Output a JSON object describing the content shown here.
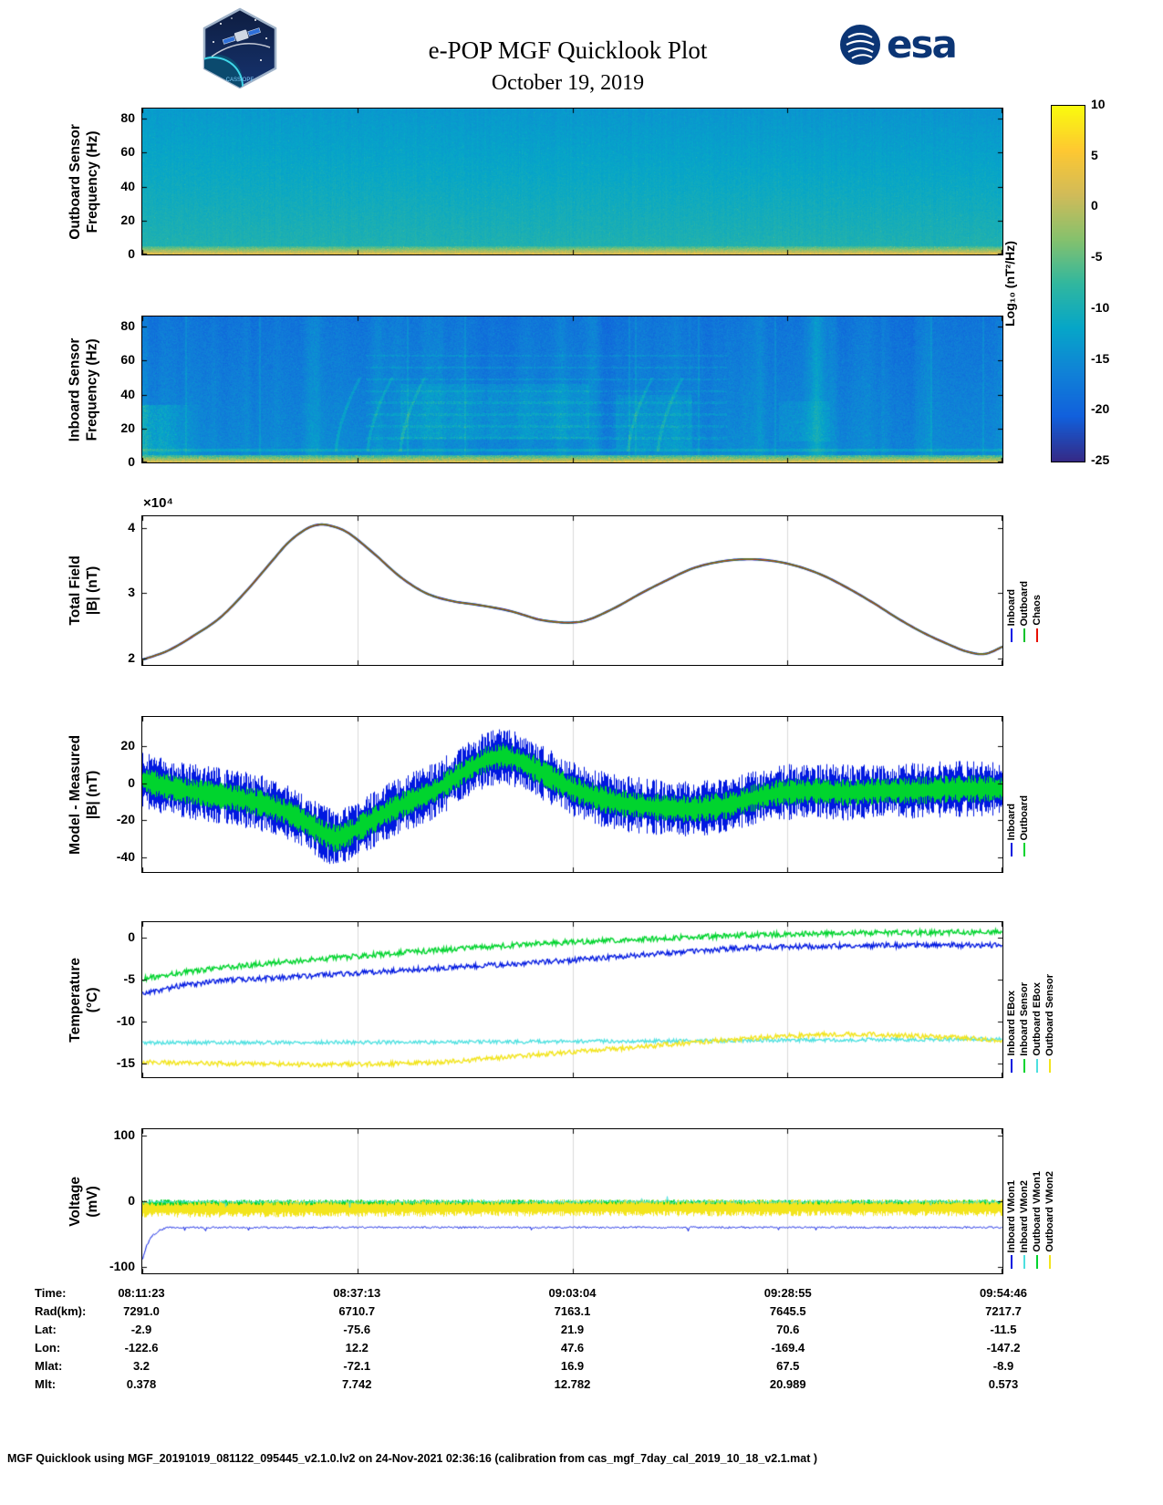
{
  "header": {
    "title": "e-POP MGF Quicklook Plot",
    "date": "October 19, 2019",
    "esa_text": "esa",
    "epop_caption": "CASSIOPE"
  },
  "colorbar": {
    "label": "Log₁₀ (nT²/Hz)",
    "ticks": [
      10,
      5,
      0,
      -5,
      -10,
      -15,
      -20,
      -25
    ],
    "vmin": -25,
    "vmax": 10
  },
  "time_ticks": [
    "08:11:23",
    "08:37:13",
    "09:03:04",
    "09:28:55",
    "09:54:46"
  ],
  "chart_data": [
    {
      "id": "outboard_spectrogram",
      "type": "heatmap",
      "seed": 11,
      "ylabel": "Outboard Sensor\nFrequency (Hz)",
      "yticks": [
        0,
        20,
        40,
        60,
        80
      ],
      "fmax": 86,
      "vmin": -25,
      "vmax": 10,
      "bg_bottom": -9.0,
      "bg_top": -13.2,
      "noise": 1.25,
      "band_fmax": 4.5,
      "band_level": 2.6,
      "band_base": -7,
      "value_units": "Log10 (nT^2/Hz)"
    },
    {
      "id": "inboard_spectrogram",
      "type": "heatmap",
      "seed": 22,
      "ylabel": "Inboard Sensor\nFrequency (Hz)",
      "yticks": [
        0,
        20,
        40,
        60,
        80
      ],
      "fmax": 86,
      "vmin": -25,
      "vmax": 10,
      "bg_bottom": -15.3,
      "bg_top": -18.0,
      "noise": 2.1,
      "band_fmax": 4.0,
      "band_level": 2.2,
      "band_base": -8,
      "value_units": "Log10 (nT^2/Hz)"
    },
    {
      "id": "total_field",
      "type": "line",
      "seed": 3,
      "ylabel": "Total Field\n|B| (nT)",
      "scale_label": "×10⁴",
      "ylim": [
        1.9,
        4.18
      ],
      "yticks": [
        4,
        3,
        2
      ],
      "x": [
        0,
        0.03,
        0.06,
        0.09,
        0.12,
        0.15,
        0.17,
        0.19,
        0.205,
        0.22,
        0.24,
        0.27,
        0.3,
        0.33,
        0.36,
        0.39,
        0.42,
        0.44,
        0.46,
        0.48,
        0.5,
        0.52,
        0.55,
        0.58,
        0.61,
        0.64,
        0.67,
        0.7,
        0.73,
        0.76,
        0.79,
        0.82,
        0.85,
        0.88,
        0.91,
        0.94,
        0.96,
        0.98,
        1.0
      ],
      "y": [
        1.98,
        2.12,
        2.35,
        2.62,
        3.02,
        3.48,
        3.78,
        3.98,
        4.05,
        4.03,
        3.92,
        3.6,
        3.25,
        3.0,
        2.88,
        2.82,
        2.75,
        2.68,
        2.6,
        2.56,
        2.55,
        2.6,
        2.78,
        3.0,
        3.2,
        3.38,
        3.48,
        3.52,
        3.5,
        3.42,
        3.28,
        3.08,
        2.85,
        2.6,
        2.38,
        2.2,
        2.1,
        2.07,
        2.18
      ],
      "series": [
        {
          "name": "Inboard",
          "mode": "smooth",
          "color": "#0015e6",
          "width": 2.4
        },
        {
          "name": "Outboard",
          "mode": "smooth",
          "color": "#00c22a",
          "width": 1.7
        },
        {
          "name": "Chaos",
          "mode": "smooth",
          "color": "#ad4512",
          "width": 1.3
        }
      ],
      "legend": [
        {
          "label": "Inboard",
          "color": "#0015e6"
        },
        {
          "label": "Outboard",
          "color": "#00c22a"
        },
        {
          "label": "Chaos",
          "color": "#e80f00"
        }
      ],
      "legend_mb": 26
    },
    {
      "id": "model_minus_measured",
      "type": "line",
      "seed": 4,
      "ylabel": "Model - Measured\n|B| (nT)",
      "ylim": [
        -48,
        36
      ],
      "yticks": [
        20,
        0,
        -20,
        -40
      ],
      "x": [
        0,
        0.02,
        0.05,
        0.08,
        0.11,
        0.14,
        0.17,
        0.19,
        0.21,
        0.225,
        0.24,
        0.26,
        0.29,
        0.32,
        0.34,
        0.36,
        0.38,
        0.4,
        0.42,
        0.44,
        0.46,
        0.48,
        0.5,
        0.53,
        0.56,
        0.6,
        0.64,
        0.68,
        0.71,
        0.74,
        0.78,
        0.82,
        0.86,
        0.9,
        0.94,
        0.97,
        1.0
      ],
      "y": [
        2,
        -1,
        -4,
        -6,
        -8,
        -11,
        -16,
        -21,
        -27,
        -30,
        -27,
        -22,
        -14,
        -8,
        -4,
        2,
        8,
        13,
        15,
        12,
        7,
        2,
        -3,
        -8,
        -11,
        -13,
        -14,
        -12,
        -8,
        -5,
        -4,
        -5,
        -4,
        -4,
        -3,
        -3,
        -3
      ],
      "series": [
        {
          "name": "Inboard",
          "mode": "band",
          "color": "#0018e0",
          "amp": 10.5
        },
        {
          "name": "Outboard",
          "mode": "band",
          "color": "#00d42e",
          "amp": 5.2
        }
      ],
      "legend": [
        {
          "label": "Inboard",
          "color": "#0018e0"
        },
        {
          "label": "Outboard",
          "color": "#00d42e"
        }
      ],
      "legend_mb": 18
    },
    {
      "id": "temperature",
      "type": "line",
      "seed": 5,
      "ylabel": "Temperature\n(°C)",
      "ylim": [
        -16.6,
        1.84
      ],
      "yticks": [
        0,
        -5,
        -10,
        -15
      ],
      "series": [
        {
          "name": "Outboard EBox",
          "mode": "noisy",
          "color": "#4ce0e0",
          "amp": 0.22,
          "width": 1.3,
          "x": [
            0,
            0.25,
            0.5,
            0.75,
            1
          ],
          "y": [
            -12.5,
            -12.45,
            -12.35,
            -12.2,
            -12.05
          ]
        },
        {
          "name": "Outboard Sensor",
          "mode": "noisy",
          "color": "#f2e41c",
          "amp": 0.28,
          "width": 1.4,
          "x": [
            0,
            0.1,
            0.2,
            0.3,
            0.35,
            0.4,
            0.5,
            0.6,
            0.7,
            0.75,
            0.8,
            0.85,
            0.9,
            0.95,
            1
          ],
          "y": [
            -14.8,
            -15.0,
            -15.1,
            -15.0,
            -14.8,
            -14.4,
            -13.6,
            -12.8,
            -12.0,
            -11.7,
            -11.5,
            -11.5,
            -11.7,
            -11.9,
            -12.2
          ]
        },
        {
          "name": "Inboard EBox",
          "mode": "noisy",
          "color": "#0018e0",
          "amp": 0.32,
          "width": 1.3,
          "x": [
            0,
            0.05,
            0.1,
            0.15,
            0.2,
            0.3,
            0.4,
            0.5,
            0.6,
            0.7,
            0.8,
            0.9,
            1
          ],
          "y": [
            -6.6,
            -5.6,
            -5.1,
            -4.8,
            -4.5,
            -3.9,
            -3.3,
            -2.7,
            -1.9,
            -1.2,
            -1.0,
            -0.9,
            -0.9
          ]
        },
        {
          "name": "Inboard Sensor",
          "mode": "noisy",
          "color": "#00d42e",
          "amp": 0.32,
          "width": 1.4,
          "x": [
            0,
            0.05,
            0.1,
            0.15,
            0.2,
            0.3,
            0.4,
            0.5,
            0.6,
            0.7,
            0.8,
            0.9,
            1
          ],
          "y": [
            -4.9,
            -4.1,
            -3.5,
            -3.0,
            -2.6,
            -1.8,
            -1.1,
            -0.5,
            -0.1,
            0.3,
            0.5,
            0.6,
            0.7
          ]
        }
      ],
      "legend": [
        {
          "label": "Inboard EBox",
          "color": "#0018e0"
        },
        {
          "label": "Inboard Sensor",
          "color": "#00d42e"
        },
        {
          "label": "Outboard EBox",
          "color": "#4ce0e0"
        },
        {
          "label": "Outboard Sensor",
          "color": "#f2e41c"
        }
      ],
      "legend_mb": 6
    },
    {
      "id": "voltage",
      "type": "line",
      "seed": 6,
      "ylabel": "Voltage\n(mV)",
      "ylim": [
        -110,
        110
      ],
      "yticks": [
        100,
        0,
        -100
      ],
      "series": [
        {
          "name": "Outboard VMon1",
          "mode": "band",
          "color": "#00d42e",
          "amp": 4.5,
          "x": [
            0,
            1
          ],
          "y": [
            -4,
            -4
          ]
        },
        {
          "name": "Outboard VMon2",
          "mode": "band",
          "color": "#f2e41c",
          "amp": 9,
          "x": [
            0,
            0.5,
            1
          ],
          "y": [
            -12,
            -10,
            -10
          ]
        },
        {
          "name": "Inboard VMon2",
          "mode": "noisy",
          "color": "#4ce0e0",
          "amp": 2.2,
          "width": 1,
          "spike_rate": 0.006,
          "spike_depth": 7,
          "spike_sign": 0,
          "x": [
            0,
            1
          ],
          "y": [
            -1,
            -1
          ]
        },
        {
          "name": "Inboard VMon1",
          "mode": "noisy",
          "color": "#0018e0",
          "amp": 1.4,
          "width": 1,
          "spike_rate": 0.012,
          "spike_depth": 5,
          "spike_sign": -1,
          "x": [
            0,
            0.004,
            0.01,
            0.02,
            0.03,
            1
          ],
          "y": [
            -88,
            -70,
            -54,
            -44,
            -40,
            -40
          ]
        }
      ],
      "legend": [
        {
          "label": "Inboard VMon1",
          "color": "#0018e0"
        },
        {
          "label": "Inboard VMon2",
          "color": "#4ce0e0"
        },
        {
          "label": "Outboard VMon1",
          "color": "#00d42e"
        },
        {
          "label": "Outboard VMon2",
          "color": "#f2e41c"
        }
      ],
      "legend_mb": 6
    }
  ],
  "table": {
    "rows": [
      {
        "label": "Time:",
        "values": [
          "08:11:23",
          "08:37:13",
          "09:03:04",
          "09:28:55",
          "09:54:46"
        ]
      },
      {
        "label": "Rad(km):",
        "values": [
          "7291.0",
          "6710.7",
          "7163.1",
          "7645.5",
          "7217.7"
        ]
      },
      {
        "label": "Lat:",
        "values": [
          "-2.9",
          "-75.6",
          "21.9",
          "70.6",
          "-11.5"
        ]
      },
      {
        "label": "Lon:",
        "values": [
          "-122.6",
          "12.2",
          "47.6",
          "-169.4",
          "-147.2"
        ]
      },
      {
        "label": "Mlat:",
        "values": [
          "3.2",
          "-72.1",
          "16.9",
          "67.5",
          "-8.9"
        ]
      },
      {
        "label": "Mlt:",
        "values": [
          "0.378",
          "7.742",
          "12.782",
          "20.989",
          "0.573"
        ]
      }
    ]
  },
  "footer": {
    "text": "MGF Quicklook using MGF_20191019_081122_095445_v2.1.0.lv2 on 24-Nov-2021 02:36:16 (calibration from cas_mgf_7day_cal_2019_10_18_v2.1.mat )"
  }
}
